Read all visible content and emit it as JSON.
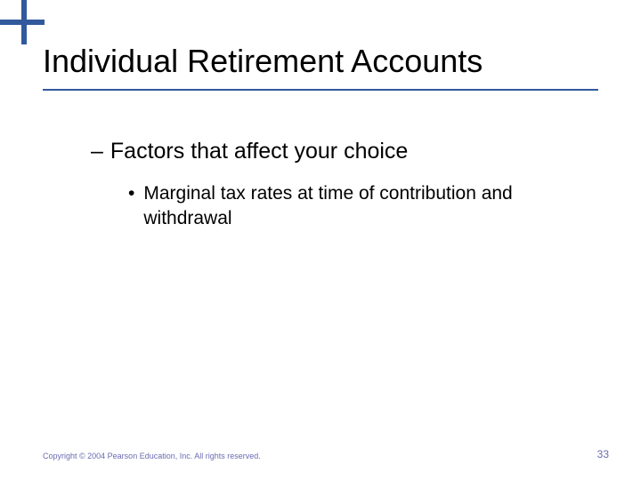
{
  "slide": {
    "title": "Individual Retirement Accounts",
    "accent_color": "#31599c",
    "title_fontsize": 36,
    "background_color": "#ffffff"
  },
  "content": {
    "level2": {
      "marker": "–",
      "text": "Factors that affect your choice",
      "fontsize": 25
    },
    "level3": {
      "marker": "•",
      "text": "Marginal tax rates at time of contribution and withdrawal",
      "fontsize": 21
    }
  },
  "footer": {
    "copyright": "Copyright © 2004 Pearson Education, Inc. All rights reserved.",
    "page_number": "33",
    "footer_color": "#6b6bb3",
    "copyright_fontsize": 9,
    "pagenum_fontsize": 12
  }
}
